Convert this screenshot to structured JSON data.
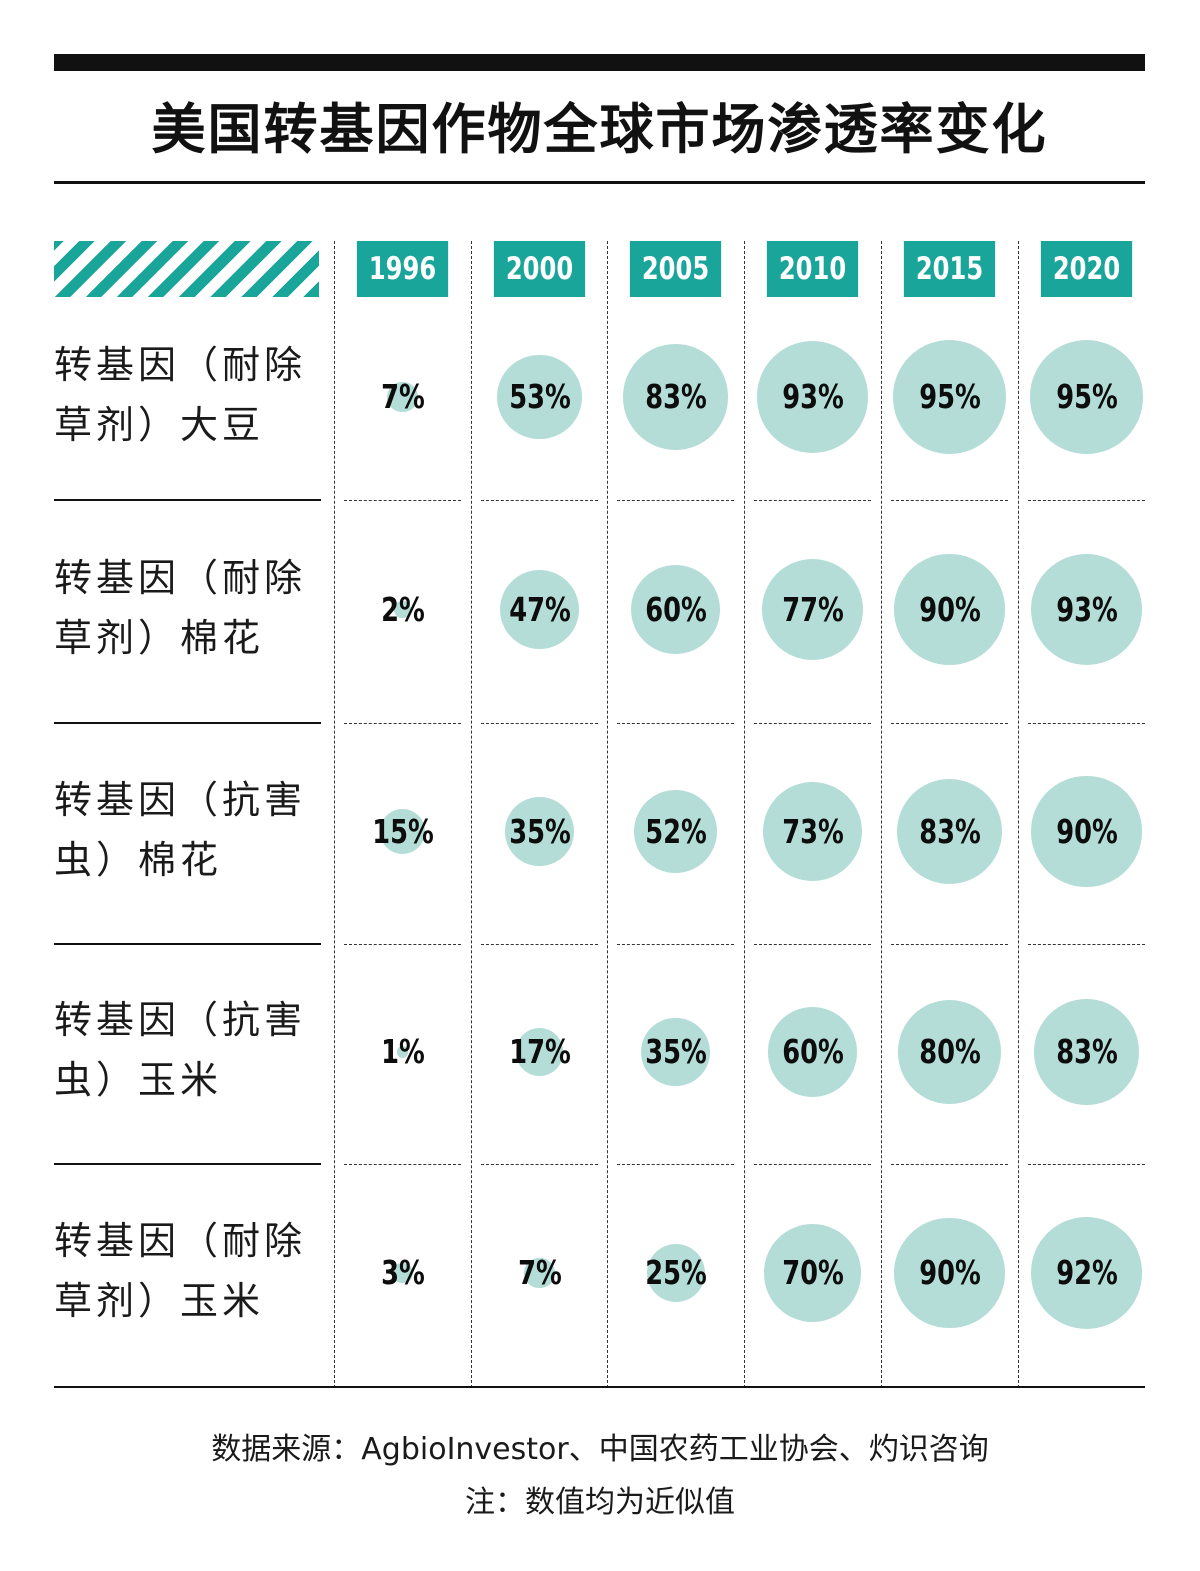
{
  "title": "美国转基因作物全球市场渗透率变化",
  "colors": {
    "accent": "#1aa59a",
    "bubble": "#b3ddd6",
    "text": "#111111"
  },
  "chart_data": {
    "type": "table",
    "title": "美国转基因作物全球市场渗透率变化",
    "years": [
      "1996",
      "2000",
      "2005",
      "2010",
      "2015",
      "2020"
    ],
    "rows": [
      {
        "label_line1": "转基因（耐除",
        "label_line2": "草剂）大豆",
        "values": [
          7,
          53,
          83,
          93,
          95,
          95
        ],
        "labels": [
          "7%",
          "53%",
          "83%",
          "93%",
          "95%",
          "95%"
        ]
      },
      {
        "label_line1": "转基因（耐除",
        "label_line2": "草剂）棉花",
        "values": [
          2,
          47,
          60,
          77,
          90,
          93
        ],
        "labels": [
          "2%",
          "47%",
          "60%",
          "77%",
          "90%",
          "93%"
        ]
      },
      {
        "label_line1": "转基因（抗害",
        "label_line2": "虫）棉花",
        "values": [
          15,
          35,
          52,
          73,
          83,
          90
        ],
        "labels": [
          "15%",
          "35%",
          "52%",
          "73%",
          "83%",
          "90%"
        ]
      },
      {
        "label_line1": "转基因（抗害",
        "label_line2": "虫）玉米",
        "values": [
          1,
          17,
          35,
          60,
          80,
          83
        ],
        "labels": [
          "1%",
          "17%",
          "35%",
          "60%",
          "80%",
          "83%"
        ]
      },
      {
        "label_line1": "转基因（耐除",
        "label_line2": "草剂）玉米",
        "values": [
          3,
          7,
          25,
          70,
          90,
          92
        ],
        "labels": [
          "3%",
          "7%",
          "25%",
          "70%",
          "90%",
          "92%"
        ]
      }
    ]
  },
  "footer": {
    "source": "数据来源：AgbioInvestor、中国农药工业协会、灼识咨询",
    "note": "注：数值均为近似值"
  }
}
